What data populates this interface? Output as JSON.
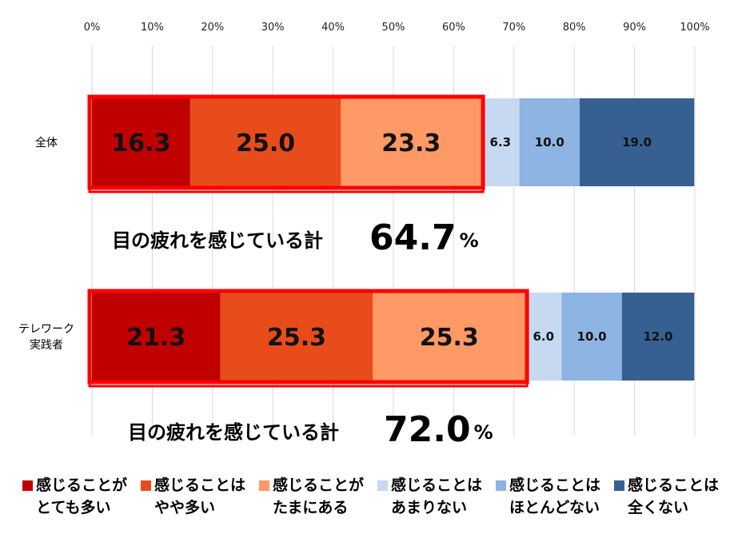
{
  "chart_data": {
    "type": "bar",
    "orientation": "horizontal",
    "stacked": true,
    "percent_stacked": true,
    "xlim": [
      0,
      100
    ],
    "x_ticks": [
      "0%",
      "10%",
      "20%",
      "30%",
      "40%",
      "50%",
      "60%",
      "70%",
      "80%",
      "90%",
      "100%"
    ],
    "grid": "vertical",
    "categories": [
      {
        "label_lines": [
          "全体"
        ]
      },
      {
        "label_lines": [
          "テレワーク",
          "実践者"
        ]
      }
    ],
    "series": [
      {
        "name_lines": [
          "感じることが",
          "とても多い"
        ],
        "color": "#C00000",
        "values": [
          16.3,
          21.3
        ]
      },
      {
        "name_lines": [
          "感じることは",
          "やや多い"
        ],
        "color": "#E84C1B",
        "values": [
          25.0,
          25.3
        ]
      },
      {
        "name_lines": [
          "感じることが",
          "たまにある"
        ],
        "color": "#FF9966",
        "values": [
          23.3,
          25.3
        ]
      },
      {
        "name_lines": [
          "感じることは",
          "あまりない"
        ],
        "color": "#C6D9F1",
        "values": [
          6.3,
          6.0
        ]
      },
      {
        "name_lines": [
          "感じることは",
          "ほとんどない"
        ],
        "color": "#8DB4E2",
        "values": [
          10.0,
          10.0
        ]
      },
      {
        "name_lines": [
          "感じることは",
          "全くない"
        ],
        "color": "#366092",
        "values": [
          19.0,
          12.0
        ]
      }
    ],
    "data_labels": [
      [
        "16.3",
        "25.0",
        "23.3",
        "6.3",
        "10.0",
        "19.0"
      ],
      [
        "21.3",
        "25.3",
        "25.3",
        "6.0",
        "10.0",
        "12.0"
      ]
    ],
    "highlight_color": "#FF0000",
    "annotations": [
      {
        "text": "目の疲れを感じている計",
        "value": "64.7",
        "unit": "%"
      },
      {
        "text": "目の疲れを感じている計",
        "value": "72.0",
        "unit": "%"
      }
    ],
    "legend_position": "bottom"
  }
}
